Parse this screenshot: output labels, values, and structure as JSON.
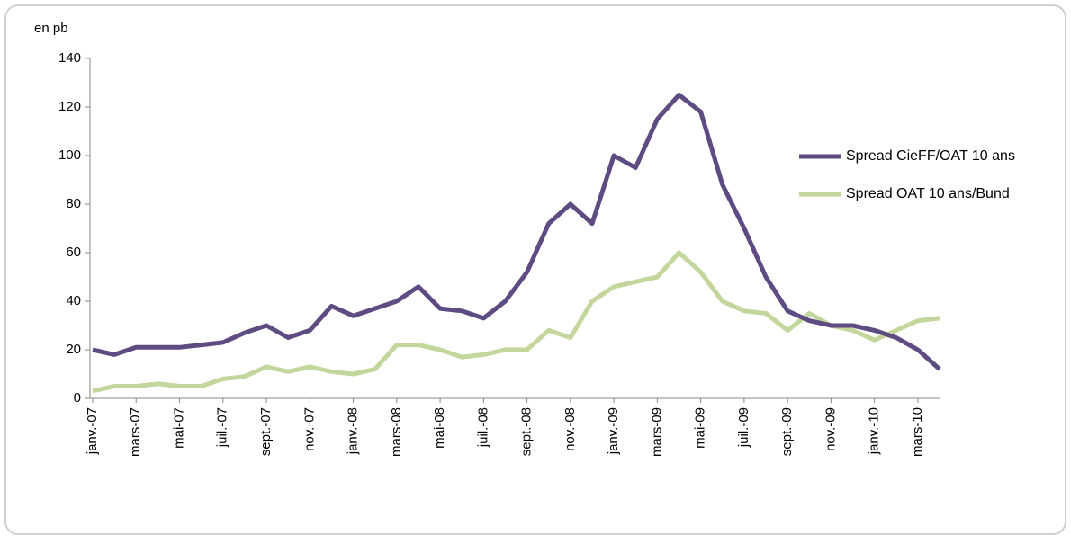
{
  "chart_data": {
    "type": "line",
    "y_label": "en pb",
    "categories": [
      "janv.-07",
      null,
      "mars-07",
      null,
      "mai-07",
      null,
      "juil.-07",
      null,
      "sept.-07",
      null,
      "nov.-07",
      null,
      "janv.-08",
      null,
      "mars-08",
      null,
      "mai-08",
      null,
      "juil.-08",
      null,
      "sept.-08",
      null,
      "nov.-08",
      null,
      "janv.-09",
      null,
      "mars-09",
      null,
      "mai-09",
      null,
      "juil.-09",
      null,
      "sept.-09",
      null,
      "nov.-09",
      null,
      "janv.-10",
      null,
      "mars-10",
      null
    ],
    "series": [
      {
        "name": "Spread CieFF/OAT 10 ans",
        "color": "#5e4b82",
        "values": [
          20,
          18,
          21,
          21,
          21,
          22,
          23,
          27,
          30,
          25,
          28,
          38,
          34,
          37,
          40,
          46,
          37,
          36,
          33,
          40,
          52,
          72,
          80,
          72,
          100,
          95,
          115,
          125,
          118,
          88,
          70,
          50,
          36,
          32,
          30,
          30,
          28,
          25,
          20,
          12
        ]
      },
      {
        "name": "Spread OAT 10 ans/Bund",
        "color": "#c3d69b",
        "values": [
          3,
          5,
          5,
          6,
          5,
          5,
          8,
          9,
          13,
          11,
          13,
          11,
          10,
          12,
          22,
          22,
          20,
          17,
          18,
          20,
          20,
          28,
          25,
          40,
          46,
          48,
          50,
          60,
          52,
          40,
          36,
          35,
          28,
          35,
          30,
          28,
          24,
          28,
          32,
          33
        ]
      }
    ],
    "ylim": [
      0,
      140
    ],
    "yticks": [
      0,
      20,
      40,
      60,
      80,
      100,
      120,
      140
    ],
    "legend": "right"
  }
}
